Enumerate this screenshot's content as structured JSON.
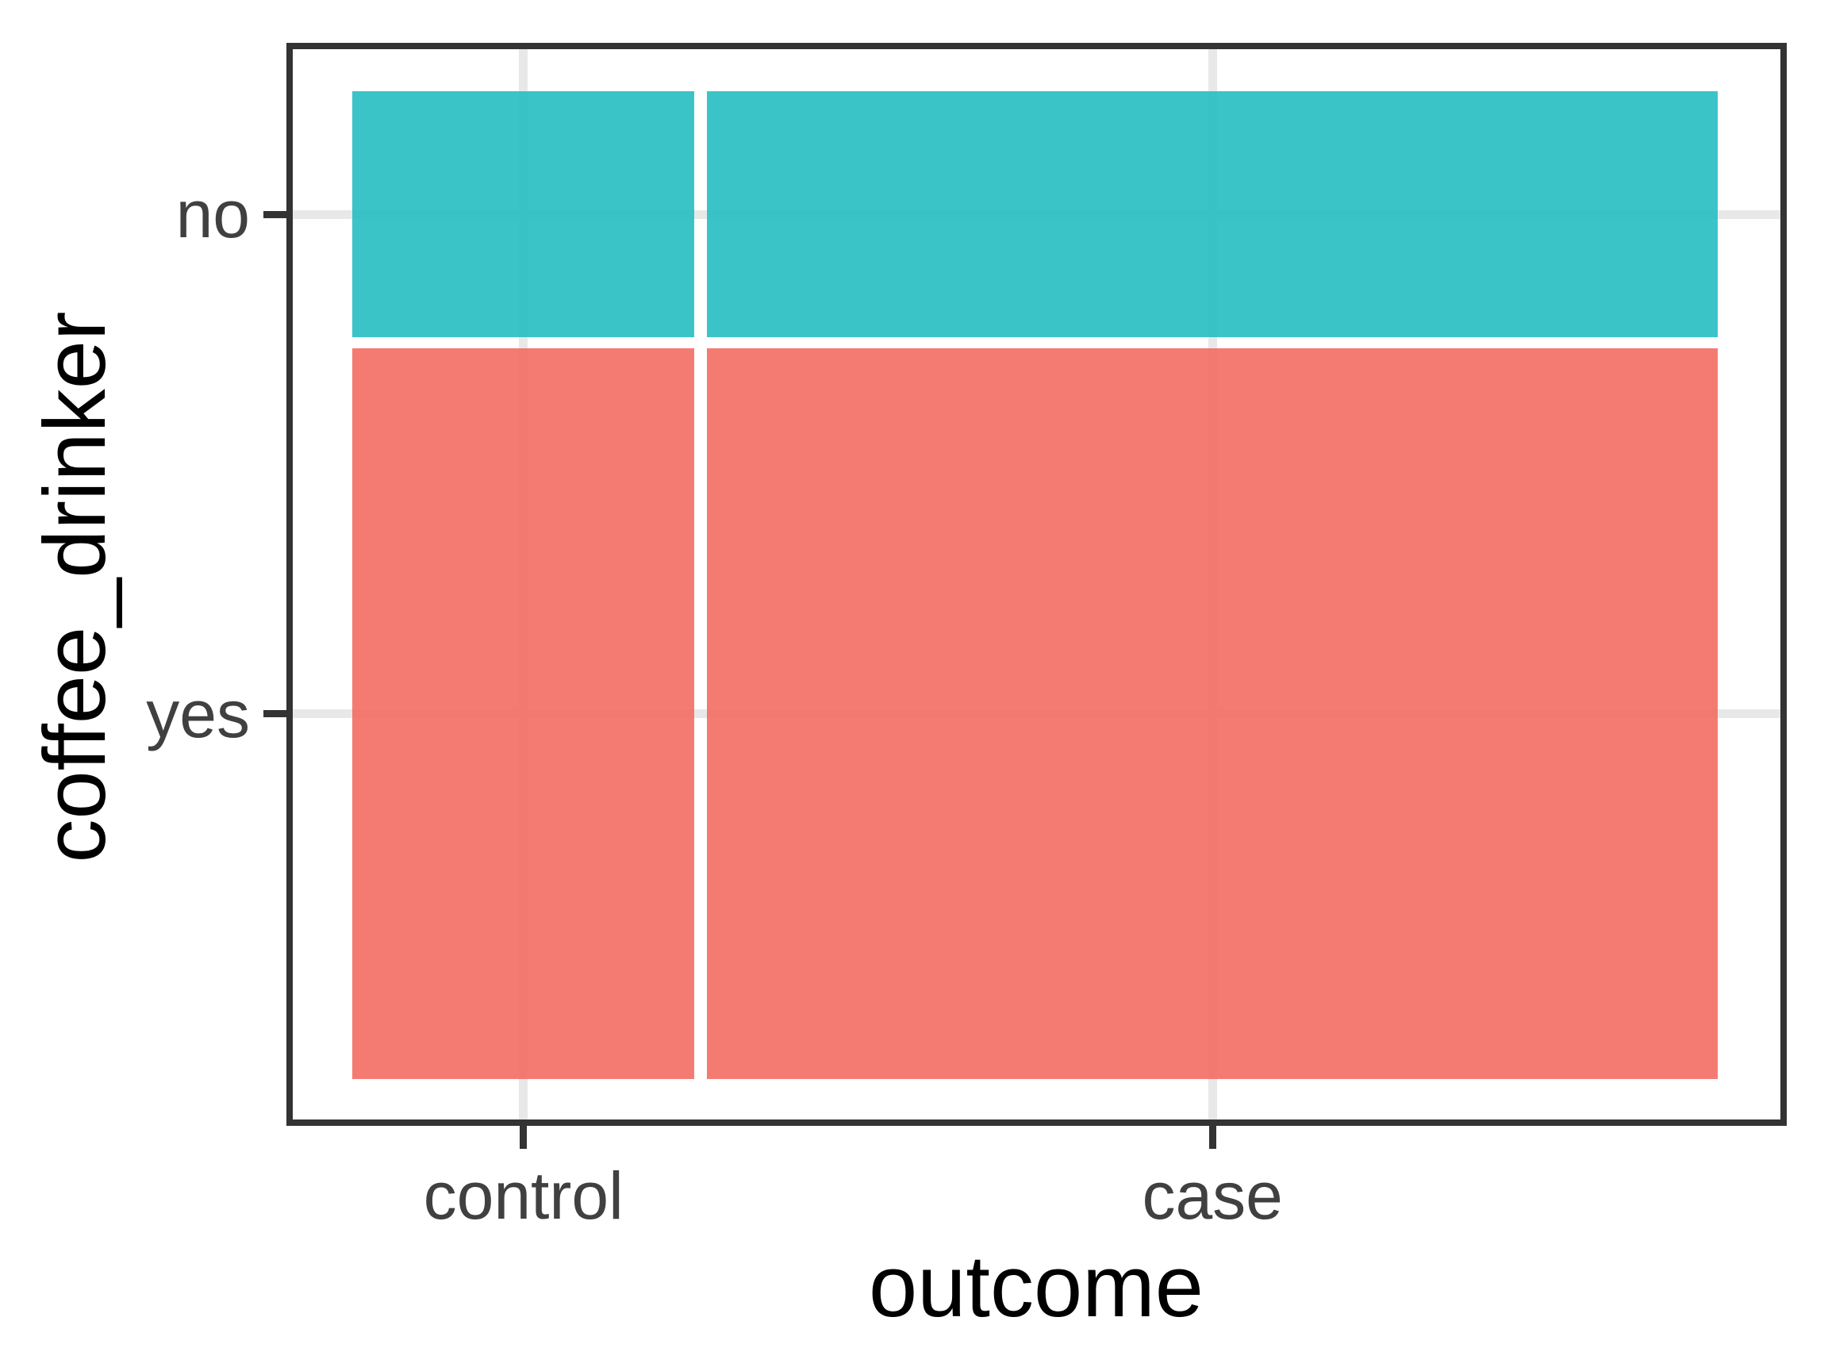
{
  "chart_data": {
    "type": "mosaic",
    "x_variable": "outcome",
    "y_variable": "coffee_drinker",
    "x_categories": [
      "control",
      "case"
    ],
    "y_categories": [
      "no",
      "yes"
    ],
    "x_proportions": [
      0.253,
      0.747
    ],
    "y_proportions_within_x": {
      "control": {
        "no": 0.252,
        "yes": 0.748
      },
      "case": {
        "no": 0.252,
        "yes": 0.748
      }
    },
    "series_colors": {
      "no": "#30C1C5",
      "yes": "#F47B72"
    },
    "fills_rgba": {
      "no": "rgba(31,188,191,0.88)",
      "yes": "rgba(243,105,95,0.88)"
    },
    "gridline_color": "#E8E8E8",
    "panel_border_color": "#333333",
    "tick_color": "#333333",
    "tick_label_color": "#404040",
    "axis_title_color": "#000000",
    "grid": "on",
    "legend_position": "none",
    "title": ""
  }
}
